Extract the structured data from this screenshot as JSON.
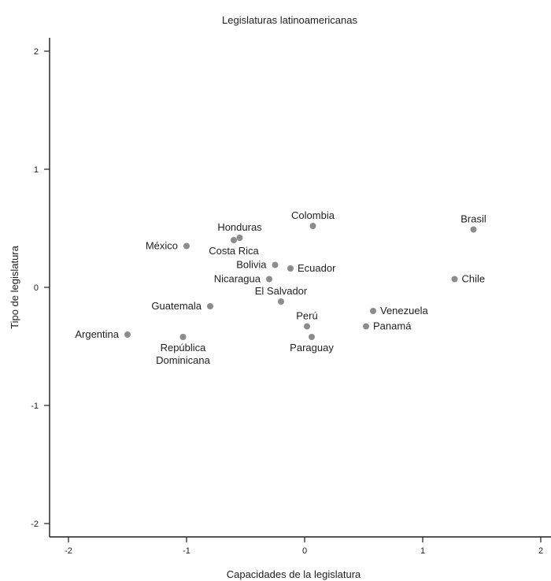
{
  "chart_data": {
    "type": "scatter",
    "title": "Legislaturas latinoamericanas",
    "xlabel": "Capacidades de la legislatura",
    "ylabel": "Tipo de legislatura",
    "xlim": [
      -2.2,
      2.0
    ],
    "ylim": [
      -2.1,
      2.1
    ],
    "xticks": [
      -2,
      -1,
      0,
      1,
      2
    ],
    "yticks": [
      -2,
      -1,
      0,
      1,
      2
    ],
    "xtick_labels": [
      "-2",
      "-1",
      "0",
      "1",
      "2"
    ],
    "ytick_labels": [
      "-2",
      "-1",
      "0",
      "1",
      "2"
    ],
    "grid": false,
    "point_color": "#8c8c8c",
    "points": [
      {
        "label": "Argentina",
        "x": -1.5,
        "y": -0.4,
        "anchor": "left"
      },
      {
        "label": "México",
        "x": -1.0,
        "y": 0.35,
        "anchor": "left"
      },
      {
        "label": "República",
        "x": -1.03,
        "y": -0.42,
        "anchor": "below",
        "label_line2": "Dominicana"
      },
      {
        "label": "Guatemala",
        "x": -0.8,
        "y": -0.16,
        "anchor": "left"
      },
      {
        "label": "Honduras",
        "x": -0.55,
        "y": 0.42,
        "anchor": "above"
      },
      {
        "label": "Costa Rica",
        "x": -0.6,
        "y": 0.4,
        "anchor": "below"
      },
      {
        "label": "Bolivia",
        "x": -0.25,
        "y": 0.19,
        "anchor": "left"
      },
      {
        "label": "Nicaragua",
        "x": -0.3,
        "y": 0.07,
        "anchor": "left"
      },
      {
        "label": "Ecuador",
        "x": -0.12,
        "y": 0.16,
        "anchor": "right"
      },
      {
        "label": "El Salvador",
        "x": -0.2,
        "y": -0.12,
        "anchor": "above"
      },
      {
        "label": "Colombia",
        "x": 0.07,
        "y": 0.52,
        "anchor": "above"
      },
      {
        "label": "Perú",
        "x": 0.02,
        "y": -0.33,
        "anchor": "above"
      },
      {
        "label": "Paraguay",
        "x": 0.06,
        "y": -0.42,
        "anchor": "below"
      },
      {
        "label": "Venezuela",
        "x": 0.58,
        "y": -0.2,
        "anchor": "right"
      },
      {
        "label": "Panamá",
        "x": 0.52,
        "y": -0.33,
        "anchor": "right"
      },
      {
        "label": "Chile",
        "x": 1.27,
        "y": 0.07,
        "anchor": "right"
      },
      {
        "label": "Brasil",
        "x": 1.43,
        "y": 0.49,
        "anchor": "above"
      }
    ]
  }
}
